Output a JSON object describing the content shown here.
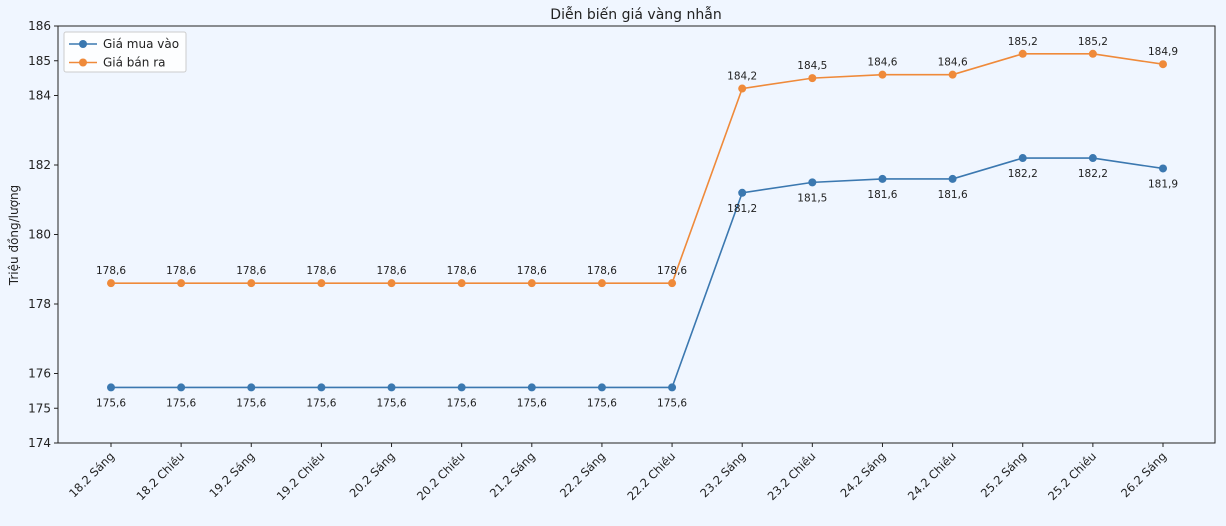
{
  "chart_data": {
    "type": "line",
    "title": "Diễn biến giá vàng nhẫn",
    "xlabel": "",
    "ylabel": "Triệu đồng/lượng",
    "categories": [
      "18.2 Sáng",
      "18.2 Chiều",
      "19.2 Sáng",
      "19.2 Chiều",
      "20.2 Sáng",
      "20.2 Chiều",
      "21.2 Sáng",
      "22.2 Sáng",
      "22.2 Chiều",
      "23.2 Sáng",
      "23.2 Chiều",
      "24.2 Sáng",
      "24.2 Chiều",
      "25.2 Sáng",
      "25.2 Chiều",
      "26.2 Sáng"
    ],
    "ylim": [
      174,
      186
    ],
    "yticks": [
      174,
      175,
      176,
      178,
      180,
      182,
      184,
      185,
      186
    ],
    "grid": false,
    "legend_position": "top-left",
    "series": [
      {
        "name": "Giá mua vào",
        "color": "#3b78b0",
        "label_position": "below",
        "values": [
          175.6,
          175.6,
          175.6,
          175.6,
          175.6,
          175.6,
          175.6,
          175.6,
          175.6,
          181.2,
          181.5,
          181.6,
          181.6,
          182.2,
          182.2,
          181.9
        ]
      },
      {
        "name": "Giá bán ra",
        "color": "#ef8a3a",
        "label_position": "above",
        "values": [
          178.6,
          178.6,
          178.6,
          178.6,
          178.6,
          178.6,
          178.6,
          178.6,
          178.6,
          184.2,
          184.5,
          184.6,
          184.6,
          185.2,
          185.2,
          184.9
        ]
      }
    ]
  }
}
